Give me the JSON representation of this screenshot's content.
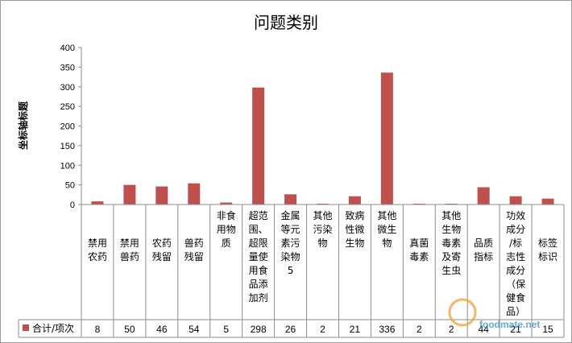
{
  "chart_data": {
    "type": "bar",
    "title": "问题类别",
    "ylabel": "坐标轴标题",
    "xlabel": "",
    "ylim": [
      0,
      400
    ],
    "yticks": [
      0,
      50,
      100,
      150,
      200,
      250,
      300,
      350,
      400
    ],
    "grid": false,
    "legend": "bottom-left",
    "categories": [
      "禁用农药",
      "禁用兽药",
      "农药残留",
      "兽药残留",
      "非食用物质",
      "超范围、超限量使用食品添加剂",
      "金属等元素污染物5",
      "其他污染物",
      "致病性微生物",
      "其他微生物",
      "真菌毒素",
      "其他生物毒素及寄生虫",
      "品质指标",
      "功效成分/标志性成分（保健食品）",
      "标签标识"
    ],
    "series": [
      {
        "name": "合计/项次",
        "values": [
          8,
          50,
          46,
          54,
          5,
          298,
          26,
          2,
          21,
          336,
          2,
          2,
          44,
          21,
          15
        ],
        "color": "#c0504d"
      }
    ]
  },
  "watermark": "foodmate.net",
  "colors": {
    "bar": "#c0504d",
    "axis": "#8c8c8c",
    "grid_table": "#8c8c8c"
  }
}
